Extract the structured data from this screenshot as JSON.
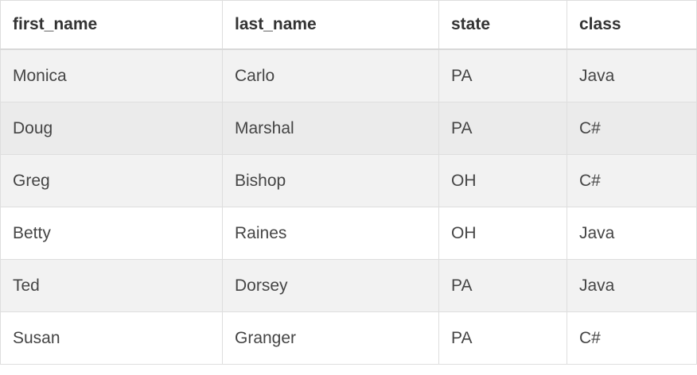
{
  "table": {
    "headers": [
      "first_name",
      "last_name",
      "state",
      "class"
    ],
    "rows": [
      [
        "Monica",
        "Carlo",
        "PA",
        "Java"
      ],
      [
        "Doug",
        "Marshal",
        "PA",
        "C#"
      ],
      [
        "Greg",
        "Bishop",
        "OH",
        "C#"
      ],
      [
        "Betty",
        "Raines",
        "OH",
        "Java"
      ],
      [
        "Ted",
        "Dorsey",
        "PA",
        "Java"
      ],
      [
        "Susan",
        "Granger",
        "PA",
        "C#"
      ]
    ]
  }
}
